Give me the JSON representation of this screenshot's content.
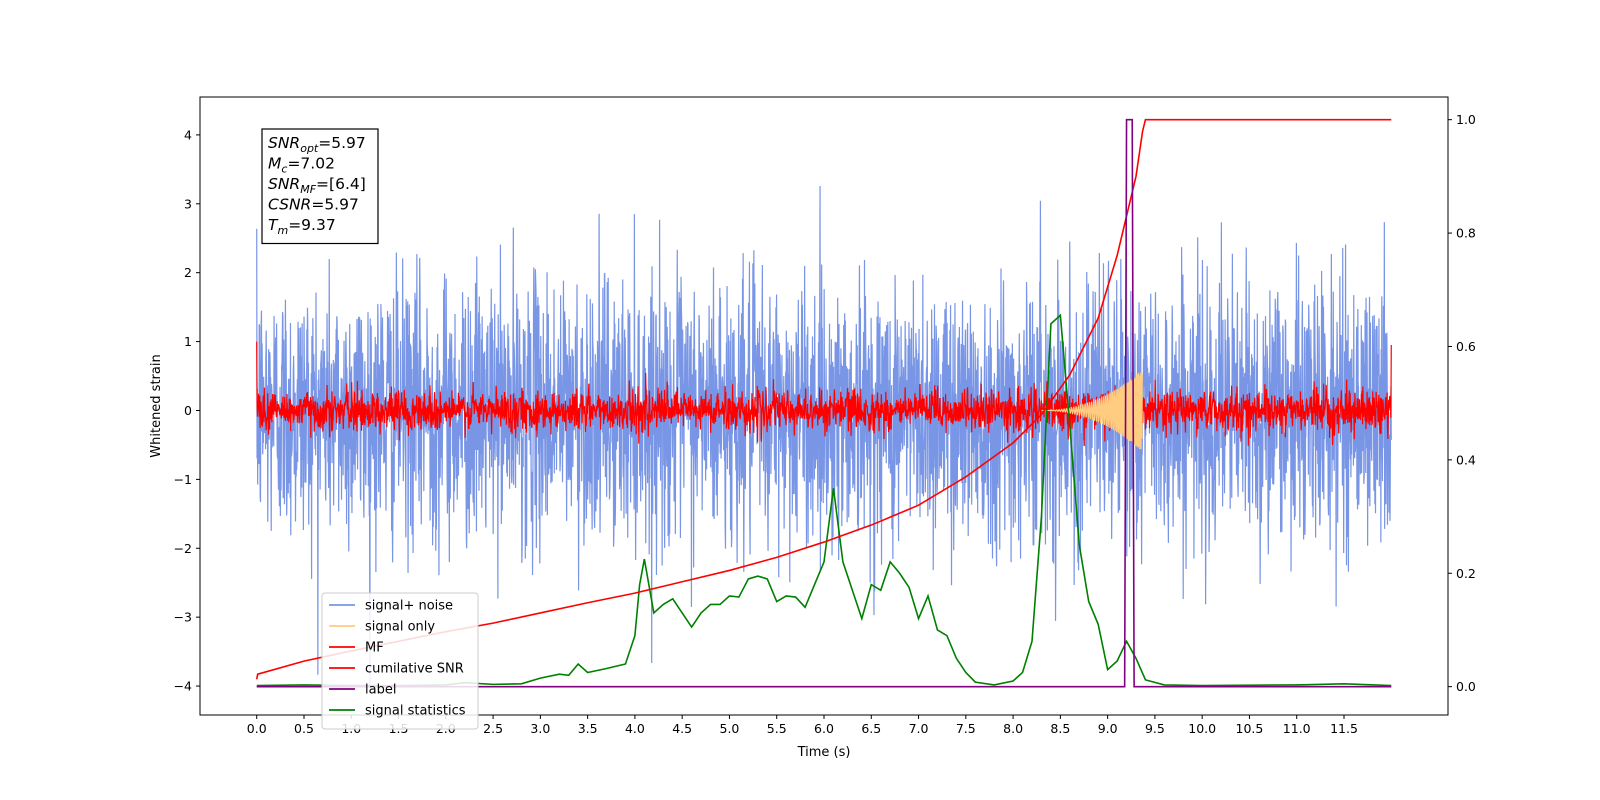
{
  "chart_data": {
    "type": "line",
    "xlabel": "Time (s)",
    "ylabel": "Whitened strain",
    "xlim": [
      -0.6,
      12.6
    ],
    "ylim": [
      -4.42,
      4.55
    ],
    "ylim_right": [
      -0.05,
      1.04
    ],
    "xticks": [
      "0.0",
      "0.5",
      "1.0",
      "1.5",
      "2.0",
      "2.5",
      "3.0",
      "3.5",
      "4.0",
      "4.5",
      "5.0",
      "5.5",
      "6.0",
      "6.5",
      "7.0",
      "7.5",
      "8.0",
      "8.5",
      "9.0",
      "9.5",
      "10.0",
      "10.5",
      "11.0",
      "11.5"
    ],
    "yticks_left": [
      "4",
      "3",
      "2",
      "1",
      "0",
      "−1",
      "−2",
      "−3",
      "−4"
    ],
    "yticks_right": [
      "1.0",
      "0.8",
      "0.6",
      "0.4",
      "0.2",
      "0.0"
    ],
    "annotation": [
      {
        "base": "SNR",
        "sub": "opt",
        "value": "=5.97"
      },
      {
        "base": "M",
        "sub": "c",
        "value": "=7.02"
      },
      {
        "base": "SNR",
        "sub": "MF",
        "value": "=[6.4]"
      },
      {
        "base": "CSNR",
        "sub": "",
        "value": "=5.97"
      },
      {
        "base": "T",
        "sub": "m",
        "value": "=9.37"
      }
    ],
    "legend": {
      "placement": "lower-left",
      "entries": [
        {
          "label": "signal+ noise",
          "color": "#7895e6"
        },
        {
          "label": "signal only",
          "color": "#ffcc80"
        },
        {
          "label": "MF",
          "color": "#ff0000"
        },
        {
          "label": "cumilative SNR",
          "color": "#ff0000"
        },
        {
          "label": "label",
          "color": "#800080"
        },
        {
          "label": "signal statistics",
          "color": "#008000"
        }
      ]
    },
    "series": [
      {
        "name": "signal+ noise",
        "axis": "left",
        "color": "#7895e6",
        "kind": "noise",
        "x_range": [
          0,
          12
        ],
        "std": 0.95,
        "min": -4.0,
        "max": 4.15
      },
      {
        "name": "MF",
        "axis": "left",
        "color": "#ff0000",
        "kind": "noise",
        "x_range": [
          0,
          12
        ],
        "std": 0.15,
        "start_value": 1.0,
        "end_value": 0.95
      },
      {
        "name": "signal only",
        "axis": "left",
        "color": "#ffcc80",
        "kind": "chirp",
        "x_range": [
          8.3,
          9.37
        ],
        "peak": 0.6
      },
      {
        "name": "cumilative SNR",
        "axis": "right",
        "color": "#ff0000",
        "x": [
          0.0,
          0.01,
          0.5,
          1.0,
          1.5,
          2.0,
          2.5,
          3.0,
          3.5,
          4.0,
          4.5,
          5.0,
          5.5,
          6.0,
          6.5,
          7.0,
          7.5,
          8.0,
          8.3,
          8.6,
          8.9,
          9.1,
          9.3,
          9.37,
          9.4,
          12.0
        ],
        "values": [
          0.013,
          0.022,
          0.045,
          0.063,
          0.08,
          0.097,
          0.112,
          0.13,
          0.148,
          0.165,
          0.185,
          0.205,
          0.228,
          0.255,
          0.285,
          0.32,
          0.37,
          0.43,
          0.48,
          0.55,
          0.65,
          0.76,
          0.9,
          0.98,
          1.0,
          1.0
        ]
      },
      {
        "name": "label",
        "axis": "right",
        "color": "#800080",
        "x": [
          0.0,
          9.18,
          9.2,
          9.26,
          9.28,
          9.35,
          9.37,
          12.0
        ],
        "values": [
          0.0,
          0.0,
          1.0,
          1.0,
          0.0,
          0.0,
          0.0,
          0.0
        ]
      },
      {
        "name": "signal statistics",
        "axis": "right",
        "color": "#008000",
        "x": [
          0.0,
          0.5,
          1.0,
          1.5,
          2.0,
          2.2,
          2.5,
          2.8,
          3.0,
          3.2,
          3.3,
          3.4,
          3.5,
          3.7,
          3.9,
          4.0,
          4.05,
          4.1,
          4.2,
          4.3,
          4.4,
          4.5,
          4.6,
          4.7,
          4.8,
          4.9,
          5.0,
          5.1,
          5.2,
          5.3,
          5.4,
          5.5,
          5.6,
          5.7,
          5.8,
          5.9,
          6.0,
          6.1,
          6.2,
          6.3,
          6.4,
          6.5,
          6.6,
          6.7,
          6.8,
          6.9,
          7.0,
          7.1,
          7.2,
          7.3,
          7.4,
          7.5,
          7.6,
          7.8,
          8.0,
          8.1,
          8.2,
          8.3,
          8.4,
          8.5,
          8.6,
          8.7,
          8.8,
          8.9,
          9.0,
          9.1,
          9.2,
          9.3,
          9.4,
          9.6,
          10.0,
          11.0,
          11.5,
          12.0
        ],
        "values": [
          0.002,
          0.003,
          0.002,
          0.002,
          0.003,
          0.007,
          0.004,
          0.005,
          0.015,
          0.022,
          0.02,
          0.04,
          0.025,
          0.032,
          0.04,
          0.09,
          0.18,
          0.225,
          0.13,
          0.145,
          0.155,
          0.13,
          0.105,
          0.13,
          0.145,
          0.145,
          0.16,
          0.158,
          0.19,
          0.195,
          0.19,
          0.15,
          0.16,
          0.158,
          0.14,
          0.18,
          0.22,
          0.35,
          0.22,
          0.17,
          0.12,
          0.18,
          0.17,
          0.22,
          0.2,
          0.175,
          0.12,
          0.16,
          0.1,
          0.09,
          0.05,
          0.025,
          0.008,
          0.003,
          0.01,
          0.025,
          0.08,
          0.3,
          0.64,
          0.655,
          0.46,
          0.25,
          0.15,
          0.11,
          0.03,
          0.045,
          0.08,
          0.05,
          0.012,
          0.003,
          0.002,
          0.003,
          0.005,
          0.002
        ]
      }
    ]
  }
}
